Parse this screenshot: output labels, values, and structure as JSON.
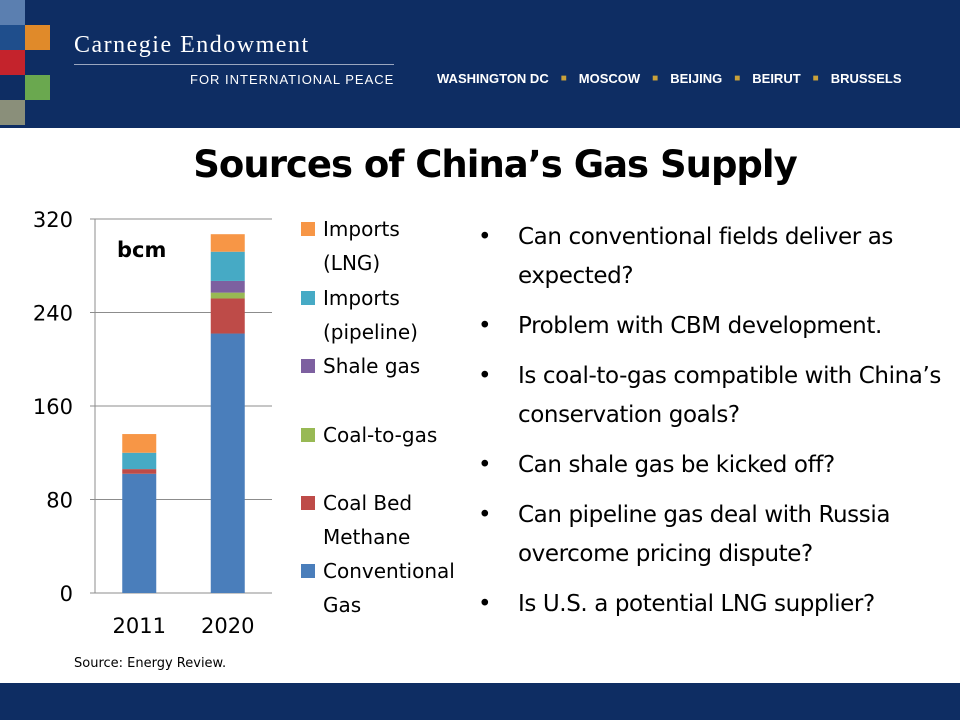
{
  "header": {
    "org_name": "Carnegie Endowment",
    "org_subtitle": "FOR INTERNATIONAL PEACE",
    "cities": [
      "WASHINGTON DC",
      "MOSCOW",
      "BEIJING",
      "BEIRUT",
      "BRUSSELS"
    ],
    "logo_colors": [
      "#e08a2a",
      "#c4232c",
      "#6aa84f",
      "#5b7fb0",
      "#8a8f7a",
      "#1f4e8c"
    ],
    "background": "#0e2d63"
  },
  "slide": {
    "title": "Sources of China’s Gas Supply",
    "source": "Source: Energy Review."
  },
  "bullets": [
    "Can conventional fields deliver as expected?",
    "Problem with CBM development.",
    "Is coal-to-gas compatible with China’s conservation goals?",
    "Can shale gas be kicked off?",
    "Can pipeline gas deal with Russia overcome pricing dispute?",
    "Is U.S. a potential LNG supplier?"
  ],
  "chart_data": {
    "type": "bar",
    "stacked": true,
    "unit_label": "bcm",
    "categories": [
      "2011",
      "2020"
    ],
    "ylim": [
      0,
      320
    ],
    "yticks": [
      0,
      80,
      160,
      240,
      320
    ],
    "grid": true,
    "legend_position": "right",
    "series": [
      {
        "name": "Conventional Gas",
        "color": "#4a7ebb",
        "values": [
          102,
          222
        ]
      },
      {
        "name": "Coal Bed Methane",
        "color": "#be4b48",
        "values": [
          4,
          30
        ]
      },
      {
        "name": "Coal-to-gas",
        "color": "#98b954",
        "values": [
          0,
          5
        ]
      },
      {
        "name": "Shale gas",
        "color": "#7d60a0",
        "values": [
          0,
          10
        ]
      },
      {
        "name": "Imports (pipeline)",
        "color": "#46aac5",
        "values": [
          14,
          25
        ]
      },
      {
        "name": "Imports (LNG)",
        "color": "#f79646",
        "values": [
          16,
          15
        ]
      }
    ],
    "legend_order": [
      "Imports (LNG)",
      "Imports (pipeline)",
      "Shale gas",
      "Coal-to-gas",
      "Coal Bed Methane",
      "Conventional Gas"
    ]
  }
}
